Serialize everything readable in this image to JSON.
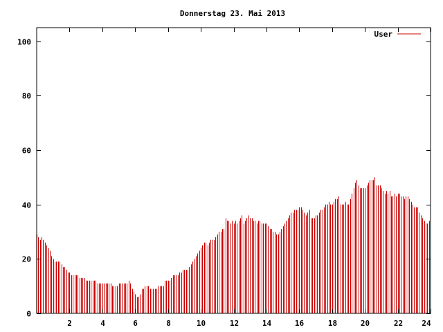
{
  "chart_data": {
    "type": "bar",
    "title": "Donnerstag 23. Mai 2013",
    "xlabel": "",
    "ylabel": "",
    "xlim": [
      0,
      24
    ],
    "ylim": [
      0,
      105
    ],
    "x_ticks": [
      2,
      4,
      6,
      8,
      10,
      12,
      14,
      16,
      18,
      20,
      22,
      24
    ],
    "y_ticks": [
      0,
      20,
      40,
      60,
      80,
      100
    ],
    "grid": false,
    "legend_position": "top-right",
    "colors": {
      "series": "#cc0000",
      "axis": "#000000",
      "background": "#ffffff"
    },
    "series": [
      {
        "name": "User",
        "interval_hours": 0.1,
        "values": [
          29,
          28,
          27,
          28,
          27,
          26,
          25,
          24,
          23,
          21,
          20,
          19,
          19,
          19,
          19,
          18,
          17,
          17,
          16,
          15,
          15,
          14,
          14,
          14,
          14,
          14,
          13,
          13,
          13,
          13,
          12,
          12,
          12,
          12,
          12,
          12,
          12,
          11,
          11,
          11,
          11,
          11,
          11,
          11,
          11,
          11,
          10,
          10,
          10,
          10,
          11,
          11,
          11,
          11,
          11,
          11,
          12,
          11,
          9,
          8,
          7,
          6,
          6,
          7,
          9,
          9,
          10,
          10,
          10,
          9,
          9,
          9,
          9,
          9,
          10,
          10,
          10,
          10,
          12,
          12,
          12,
          12,
          13,
          14,
          14,
          14,
          14,
          15,
          15,
          16,
          16,
          16,
          16,
          17,
          18,
          19,
          20,
          21,
          22,
          23,
          24,
          25,
          26,
          26,
          25,
          26,
          27,
          27,
          27,
          28,
          29,
          30,
          30,
          31,
          31,
          35,
          34,
          34,
          33,
          34,
          33,
          34,
          33,
          34,
          35,
          36,
          33,
          34,
          35,
          36,
          35,
          35,
          34,
          34,
          33,
          34,
          34,
          33,
          33,
          33,
          33,
          32,
          31,
          31,
          30,
          30,
          29,
          29,
          30,
          31,
          32,
          33,
          34,
          35,
          36,
          37,
          37,
          38,
          38,
          38,
          39,
          39,
          38,
          37,
          36,
          37,
          38,
          35,
          35,
          35,
          36,
          36,
          37,
          38,
          38,
          39,
          40,
          40,
          41,
          40,
          40,
          41,
          42,
          42,
          43,
          40,
          40,
          40,
          41,
          40,
          40,
          42,
          44,
          46,
          48,
          49,
          47,
          46,
          46,
          46,
          46,
          47,
          48,
          49,
          49,
          49,
          50,
          47,
          47,
          47,
          46,
          45,
          44,
          45,
          44,
          45,
          43,
          43,
          44,
          43,
          44,
          44,
          43,
          43,
          42,
          43,
          43,
          42,
          41,
          40,
          39,
          39,
          39,
          37,
          36,
          35,
          34,
          33,
          33,
          34
        ]
      }
    ]
  }
}
